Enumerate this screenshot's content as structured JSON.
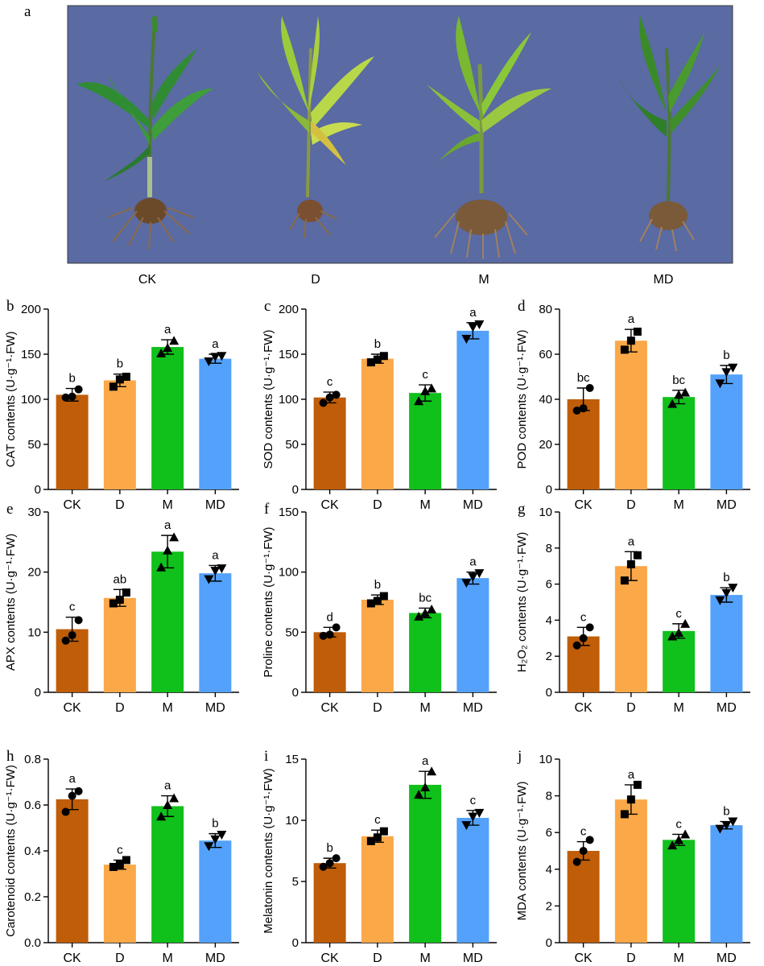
{
  "figure_letter": "a",
  "photo": {
    "background": "#5a6aa2",
    "captions": [
      "CK",
      "D",
      "M",
      "MD"
    ]
  },
  "colors": {
    "CK": "#bf5d08",
    "D": "#fba849",
    "M": "#10c01b",
    "MD": "#53a1fa"
  },
  "chart_data": [
    {
      "type": "bar",
      "panel": "b",
      "title": "",
      "categories": [
        "CK",
        "D",
        "M",
        "MD"
      ],
      "values": [
        105,
        121,
        158,
        145
      ],
      "errors": [
        7,
        7,
        8,
        5
      ],
      "points": [
        [
          102,
          103,
          111
        ],
        [
          114,
          122,
          125
        ],
        [
          151,
          157,
          165
        ],
        [
          142,
          147,
          148
        ]
      ],
      "letters": [
        "b",
        "b",
        "a",
        "a"
      ],
      "ylabel": "CAT contents (U·g⁻¹·FW)",
      "ylim": [
        0,
        200
      ],
      "yticks": [
        0,
        50,
        100,
        150,
        200
      ]
    },
    {
      "type": "bar",
      "panel": "c",
      "title": "",
      "categories": [
        "CK",
        "D",
        "M",
        "MD"
      ],
      "values": [
        102,
        145,
        107,
        176
      ],
      "errors": [
        6,
        5,
        9,
        9
      ],
      "points": [
        [
          96,
          102,
          105
        ],
        [
          141,
          144,
          148
        ],
        [
          98,
          109,
          112
        ],
        [
          167,
          180,
          183
        ]
      ],
      "letters": [
        "c",
        "b",
        "c",
        "a"
      ],
      "ylabel": "SOD contents (U·g⁻¹·FW)",
      "ylim": [
        0,
        200
      ],
      "yticks": [
        0,
        50,
        100,
        150,
        200
      ]
    },
    {
      "type": "bar",
      "panel": "d",
      "title": "",
      "categories": [
        "CK",
        "D",
        "M",
        "MD"
      ],
      "values": [
        40,
        66,
        41,
        51
      ],
      "errors": [
        5,
        5,
        3,
        4
      ],
      "points": [
        [
          35,
          36,
          45
        ],
        [
          62,
          66,
          70
        ],
        [
          38,
          42,
          43
        ],
        [
          47,
          52,
          54
        ]
      ],
      "letters": [
        "bc",
        "a",
        "bc",
        "b"
      ],
      "ylabel": "POD contents (U·g⁻¹·FW)",
      "ylim": [
        0,
        80
      ],
      "yticks": [
        0,
        20,
        40,
        60,
        80
      ]
    },
    {
      "type": "bar",
      "panel": "e",
      "title": "",
      "categories": [
        "CK",
        "D",
        "M",
        "MD"
      ],
      "values": [
        10.5,
        15.7,
        23.4,
        19.8
      ],
      "errors": [
        2,
        1.4,
        2.7,
        1.3
      ],
      "points": [
        [
          8.6,
          9.5,
          12.0
        ],
        [
          14.8,
          15.4,
          16.6
        ],
        [
          20.8,
          23.6,
          25.8
        ],
        [
          18.8,
          20.2,
          20.6
        ]
      ],
      "letters": [
        "c",
        "ab",
        "a",
        "a"
      ],
      "ylabel": "APX contents (U·g⁻¹·FW)",
      "ylim": [
        0,
        30
      ],
      "yticks": [
        0,
        10,
        20,
        30
      ]
    },
    {
      "type": "bar",
      "panel": "f",
      "title": "",
      "categories": [
        "CK",
        "D",
        "M",
        "MD"
      ],
      "values": [
        50,
        77,
        66,
        95
      ],
      "errors": [
        4,
        4,
        4,
        5
      ],
      "points": [
        [
          47,
          48,
          54
        ],
        [
          74,
          76,
          80
        ],
        [
          63,
          66,
          69
        ],
        [
          91,
          96,
          99
        ]
      ],
      "letters": [
        "d",
        "b",
        "bc",
        "a"
      ],
      "ylabel": "Proline contents (U·g⁻¹·FW)",
      "ylim": [
        0,
        150
      ],
      "yticks": [
        0,
        50,
        100,
        150
      ]
    },
    {
      "type": "bar",
      "panel": "g",
      "title": "",
      "categories": [
        "CK",
        "D",
        "M",
        "MD"
      ],
      "values": [
        3.1,
        7.0,
        3.4,
        5.4
      ],
      "errors": [
        0.5,
        0.8,
        0.4,
        0.4
      ],
      "points": [
        [
          2.6,
          3.0,
          3.6
        ],
        [
          6.2,
          7.1,
          7.6
        ],
        [
          3.1,
          3.3,
          3.8
        ],
        [
          5.1,
          5.5,
          5.8
        ]
      ],
      "letters": [
        "c",
        "a",
        "c",
        "b"
      ],
      "ylabel": "H₂O₂ contents (U·g⁻¹·FW)",
      "ylim": [
        0,
        10
      ],
      "yticks": [
        0,
        2,
        4,
        6,
        8,
        10
      ]
    },
    {
      "type": "bar",
      "panel": "h",
      "title": "",
      "categories": [
        "CK",
        "D",
        "M",
        "MD"
      ],
      "values": [
        0.625,
        0.34,
        0.595,
        0.445
      ],
      "errors": [
        0.045,
        0.02,
        0.045,
        0.03
      ],
      "points": [
        [
          0.57,
          0.64,
          0.66
        ],
        [
          0.33,
          0.34,
          0.36
        ],
        [
          0.55,
          0.6,
          0.63
        ],
        [
          0.42,
          0.45,
          0.47
        ]
      ],
      "letters": [
        "a",
        "c",
        "a",
        "b"
      ],
      "ylabel": "Carotenoid contents (U·g⁻¹·FW)",
      "ylim": [
        0,
        0.8
      ],
      "yticks": [
        0.0,
        0.2,
        0.4,
        0.6,
        0.8
      ]
    },
    {
      "type": "bar",
      "panel": "i",
      "title": "",
      "categories": [
        "CK",
        "D",
        "M",
        "MD"
      ],
      "values": [
        6.5,
        8.7,
        12.9,
        10.2
      ],
      "errors": [
        0.4,
        0.5,
        1.1,
        0.6
      ],
      "points": [
        [
          6.2,
          6.5,
          6.9
        ],
        [
          8.3,
          8.6,
          9.1
        ],
        [
          12.1,
          12.7,
          14.0
        ],
        [
          9.6,
          10.3,
          10.6
        ]
      ],
      "letters": [
        "b",
        "c",
        "a",
        "c"
      ],
      "ylabel": "Melatonin contents (U·g⁻¹·FW)",
      "ylim": [
        0,
        15
      ],
      "yticks": [
        0,
        5,
        10,
        15
      ]
    },
    {
      "type": "bar",
      "panel": "j",
      "title": "",
      "categories": [
        "CK",
        "D",
        "M",
        "MD"
      ],
      "values": [
        5.0,
        7.8,
        5.6,
        6.4
      ],
      "errors": [
        0.5,
        0.8,
        0.3,
        0.2
      ],
      "points": [
        [
          4.4,
          5.0,
          5.6
        ],
        [
          7.0,
          7.8,
          8.6
        ],
        [
          5.3,
          5.6,
          5.9
        ],
        [
          6.2,
          6.4,
          6.6
        ]
      ],
      "letters": [
        "c",
        "a",
        "c",
        "b"
      ],
      "ylabel": "MDA contents (U·g⁻¹·FW)",
      "ylim": [
        0,
        10
      ],
      "yticks": [
        0,
        2,
        4,
        6,
        8,
        10
      ]
    }
  ]
}
